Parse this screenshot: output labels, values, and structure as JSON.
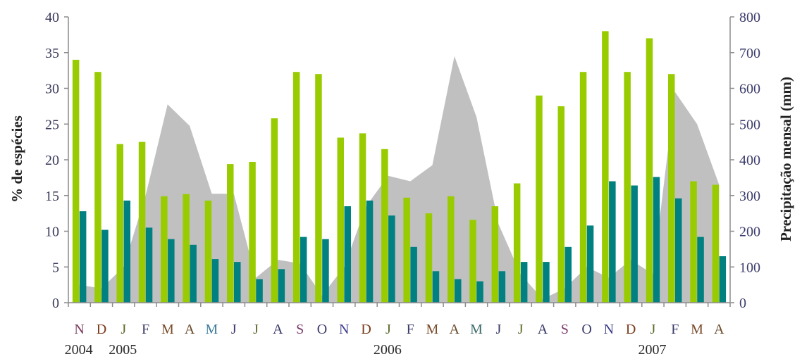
{
  "chart_data": {
    "type": "bar",
    "ylabel": "% de espécies",
    "y2label": "Precipitação mensal (mm)",
    "ylim": [
      0,
      40
    ],
    "y2lim": [
      0,
      800
    ],
    "yticks": [
      "0",
      "5",
      "10",
      "15",
      "20",
      "25",
      "30",
      "35",
      "40"
    ],
    "y2ticks": [
      "0",
      "100",
      "200",
      "300",
      "400",
      "500",
      "600",
      "700",
      "800"
    ],
    "categories": [
      "N",
      "D",
      "J",
      "F",
      "M",
      "A",
      "M",
      "J",
      "J",
      "A",
      "S",
      "O",
      "N",
      "D",
      "J",
      "F",
      "M",
      "A",
      "M",
      "J",
      "J",
      "A",
      "S",
      "O",
      "N",
      "D",
      "J",
      "F",
      "M",
      "A"
    ],
    "category_colors": [
      "#7a3a5a",
      "#7a3a1a",
      "#5a6a2a",
      "#3a3a6a",
      "#7a4a2a",
      "#6a4a2a",
      "#3a7a9a",
      "#3a3a6a",
      "#5a6a2a",
      "#3a3a6a",
      "#7a3a6a",
      "#3a3a6a",
      "#3a3a8a",
      "#7a3a1a",
      "#5a6a2a",
      "#3a3a6a",
      "#7a4a2a",
      "#6a4a2a",
      "#3a6a6a",
      "#3a3a6a",
      "#5a6a2a",
      "#3a3a6a",
      "#7a3a6a",
      "#3a3a6a",
      "#3a3a8a",
      "#7a3a1a",
      "#5a6a2a",
      "#3a3a6a",
      "#7a4a2a",
      "#6a4a2a"
    ],
    "years": [
      {
        "label": "2004",
        "index": 0
      },
      {
        "label": "2005",
        "index": 2
      },
      {
        "label": "2006",
        "index": 14
      },
      {
        "label": "2007",
        "index": 26
      }
    ],
    "series": [
      {
        "type": "bar",
        "axis": "left",
        "color": "#99cc00",
        "values": [
          34,
          32.3,
          22.2,
          22.5,
          14.9,
          15.2,
          14.3,
          19.4,
          19.7,
          25.8,
          32.3,
          32,
          23.1,
          23.7,
          21.5,
          14.7,
          12.5,
          14.9,
          11.6,
          13.5,
          16.7,
          29,
          27.5,
          32.3,
          38,
          32.3,
          37,
          32,
          17,
          16.5
        ]
      },
      {
        "type": "bar",
        "axis": "left",
        "color": "#008080",
        "values": [
          12.8,
          10.2,
          14.3,
          10.5,
          8.9,
          8.1,
          6.1,
          5.7,
          3.3,
          4.7,
          9.2,
          8.9,
          13.5,
          14.3,
          12.2,
          7.8,
          4.4,
          3.3,
          3,
          4.4,
          5.7,
          5.7,
          7.8,
          10.8,
          17,
          16.4,
          17.6,
          14.6,
          9.2,
          6.5
        ]
      },
      {
        "type": "area",
        "axis": "right",
        "color": "#c0c0c0",
        "values": [
          50,
          40,
          100,
          300,
          555,
          495,
          305,
          305,
          70,
          120,
          110,
          20,
          100,
          270,
          355,
          340,
          385,
          690,
          520,
          220,
          80,
          10,
          40,
          100,
          70,
          120,
          80,
          590,
          500,
          330
        ]
      }
    ],
    "grid": false,
    "legend": "none"
  }
}
